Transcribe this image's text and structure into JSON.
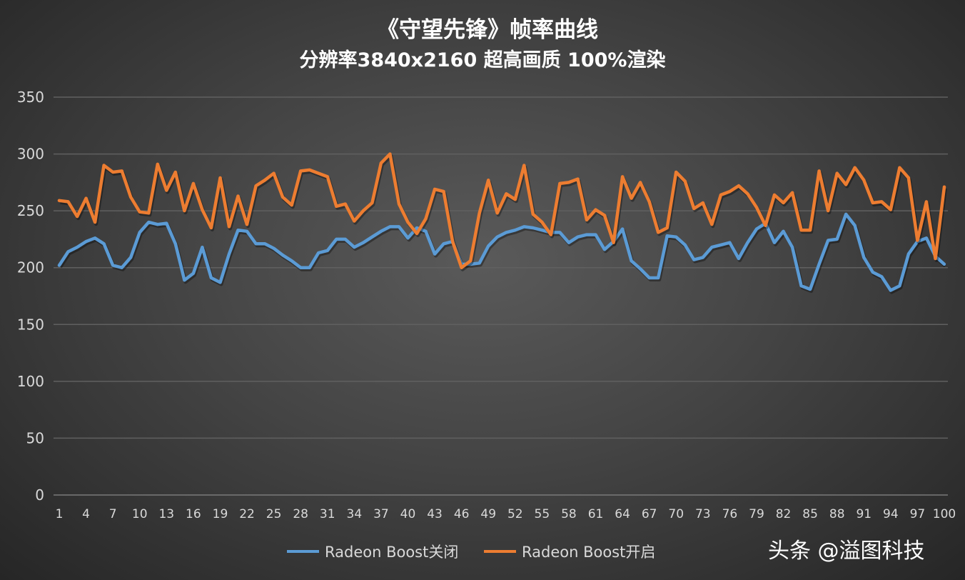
{
  "chart_data": {
    "type": "line",
    "title": "《守望先锋》帧率曲线",
    "subtitle": "分辨率3840x2160 超高画质 100%渲染",
    "xlabel": "",
    "ylabel": "",
    "ylim": [
      0,
      350
    ],
    "yticks": [
      0,
      50,
      100,
      150,
      200,
      250,
      300,
      350
    ],
    "xlim": [
      1,
      100
    ],
    "xticks": [
      1,
      4,
      7,
      10,
      13,
      16,
      19,
      22,
      25,
      28,
      31,
      34,
      37,
      40,
      43,
      46,
      49,
      52,
      55,
      58,
      61,
      64,
      67,
      70,
      73,
      76,
      79,
      82,
      85,
      88,
      91,
      94,
      97,
      100
    ],
    "grid": true,
    "legend_position": "bottom",
    "series": [
      {
        "name": "Radeon Boost关闭",
        "color": "#5b9bd5",
        "values": [
          202,
          214,
          218,
          223,
          226,
          221,
          202,
          200,
          209,
          231,
          240,
          238,
          239,
          221,
          189,
          195,
          218,
          191,
          187,
          212,
          233,
          232,
          221,
          221,
          217,
          211,
          206,
          200,
          200,
          213,
          215,
          225,
          225,
          218,
          222,
          227,
          232,
          236,
          236,
          226,
          235,
          232,
          212,
          221,
          223,
          203,
          203,
          204,
          219,
          227,
          231,
          233,
          236,
          235,
          233,
          231,
          231,
          222,
          227,
          229,
          229,
          216,
          223,
          234,
          206,
          199,
          191,
          191,
          228,
          227,
          220,
          207,
          209,
          218,
          220,
          222,
          208,
          222,
          234,
          239,
          222,
          232,
          218,
          184,
          181,
          203,
          224,
          225,
          247,
          237,
          209,
          196,
          192,
          180,
          184,
          212,
          223,
          226,
          210,
          203
        ]
      },
      {
        "name": "Radeon Boost开启",
        "color": "#ed7d31",
        "values": [
          259,
          258,
          245,
          261,
          240,
          290,
          284,
          285,
          262,
          249,
          248,
          291,
          268,
          284,
          250,
          274,
          251,
          235,
          279,
          236,
          263,
          238,
          272,
          277,
          283,
          262,
          255,
          285,
          286,
          283,
          280,
          254,
          256,
          241,
          250,
          257,
          292,
          300,
          256,
          240,
          230,
          243,
          269,
          267,
          223,
          200,
          206,
          248,
          277,
          248,
          265,
          260,
          290,
          247,
          240,
          229,
          274,
          275,
          278,
          242,
          251,
          246,
          222,
          280,
          261,
          275,
          258,
          231,
          235,
          284,
          276,
          252,
          257,
          238,
          264,
          267,
          272,
          265,
          253,
          237,
          264,
          257,
          266,
          233,
          233,
          285,
          250,
          283,
          273,
          288,
          277,
          257,
          258,
          251,
          288,
          279,
          224,
          258,
          208,
          271
        ]
      }
    ]
  },
  "watermark": "头条 @溢图科技"
}
